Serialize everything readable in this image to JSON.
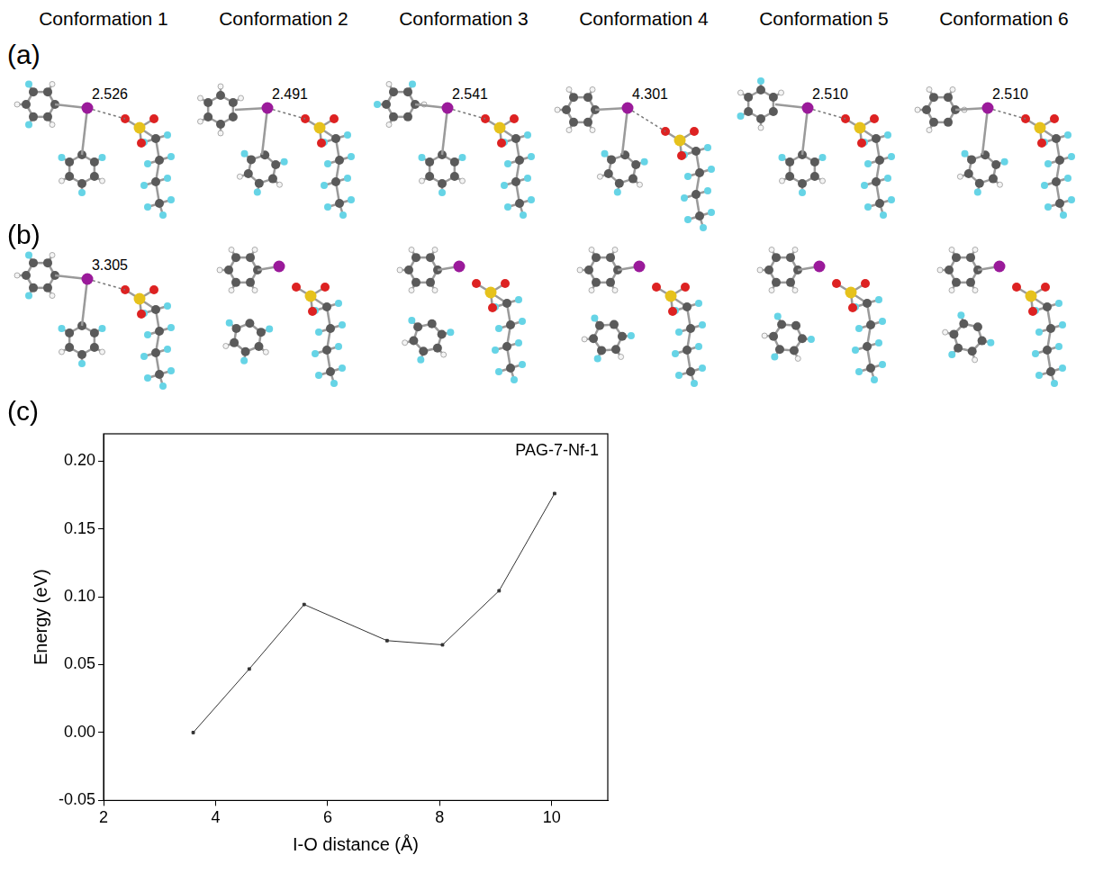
{
  "column_heads": [
    "Conformation 1",
    "Conformation 2",
    "Conformation 3",
    "Conformation 4",
    "Conformation 5",
    "Conformation 6"
  ],
  "rows": [
    {
      "label": "(a)",
      "distances": [
        "2.526",
        "2.491",
        "2.541",
        "4.301",
        "2.510",
        "2.510"
      ]
    },
    {
      "label": "(b)",
      "distances": [
        "3.305",
        null,
        null,
        null,
        null,
        null
      ]
    }
  ],
  "chart_panel_label": "(c)",
  "chart_data": {
    "type": "line",
    "title": "PAG-7-Nf-1",
    "x_label": "I-O distance (Å)",
    "y_label": "Energy (eV)",
    "x": [
      3.6,
      4.6,
      5.58,
      7.06,
      8.05,
      9.06,
      10.05
    ],
    "values": [
      0.0,
      0.0468,
      0.0943,
      0.0677,
      0.0646,
      0.1044,
      0.176
    ],
    "color": "#333333",
    "marker": "square",
    "grid": false,
    "xlim": [
      2,
      11
    ],
    "xticks": [
      2,
      4,
      6,
      8,
      10
    ],
    "ylim": [
      -0.05,
      0.22
    ],
    "yticks": [
      -0.05,
      {
        "value": 0,
        "label": "0.00"
      },
      0.05,
      {
        "value": 0.1,
        "label": "0.10"
      },
      0.15,
      {
        "value": 0.2,
        "label": "0.20"
      }
    ]
  }
}
